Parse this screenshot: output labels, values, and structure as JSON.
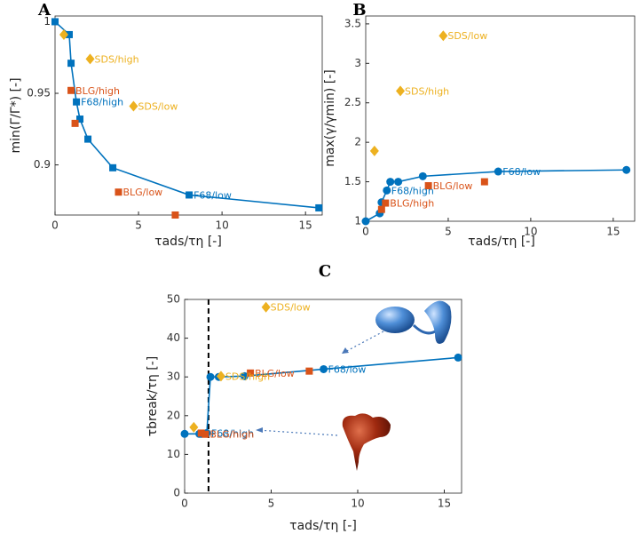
{
  "chart_data": [
    {
      "type": "scatter",
      "title": "A",
      "x_label": "τads/τη [-]",
      "y_label": "min(Γ/Γ*) [-]",
      "xlim": [
        0,
        16
      ],
      "ylim": [
        0.865,
        1.004
      ],
      "xticks": [
        0,
        5,
        10,
        15
      ],
      "yticks": [
        0.9,
        0.95,
        1
      ],
      "series": [
        {
          "color": "#0072bd",
          "marker": "square",
          "line": true,
          "x": [
            0,
            0.85,
            0.96,
            1.28,
            1.49,
            1.97,
            3.46,
            8.03,
            15.8
          ],
          "values": [
            1,
            0.991,
            0.971,
            0.944,
            0.932,
            0.918,
            0.898,
            0.879,
            0.87
          ],
          "point_labels": [
            null,
            null,
            null,
            "F68/high",
            null,
            null,
            null,
            "F68/low",
            null
          ]
        },
        {
          "color": "#d95319",
          "marker": "square",
          "line": false,
          "x": [
            0.96,
            1.2,
            3.8,
            7.2
          ],
          "values": [
            0.952,
            0.929,
            0.881,
            0.865
          ],
          "point_labels": [
            "BLG/high",
            null,
            "BLG/low",
            null
          ]
        },
        {
          "color": "#edb120",
          "marker": "diamond",
          "line": false,
          "x": [
            0.53,
            2.1,
            4.7
          ],
          "values": [
            0.991,
            0.974,
            0.941
          ],
          "point_labels": [
            null,
            "SDS/high",
            "SDS/low"
          ]
        }
      ]
    },
    {
      "type": "scatter",
      "title": "B",
      "x_label": "τads/τη [-]",
      "y_label": "max(γ/γmin) [-]",
      "xlim": [
        0,
        16.3
      ],
      "ylim": [
        1,
        3.6
      ],
      "xticks": [
        0,
        5,
        10,
        15
      ],
      "yticks": [
        1,
        1.5,
        2,
        2.5,
        3,
        3.5
      ],
      "series": [
        {
          "color": "#0072bd",
          "marker": "circle",
          "line": true,
          "x": [
            0,
            0.85,
            0.96,
            1.28,
            1.49,
            1.97,
            3.46,
            8.03,
            15.8
          ],
          "values": [
            1,
            1.1,
            1.24,
            1.39,
            1.5,
            1.5,
            1.57,
            1.63,
            1.65
          ],
          "point_labels": [
            null,
            null,
            null,
            "F68/high",
            null,
            null,
            null,
            "F68/low",
            null
          ]
        },
        {
          "color": "#d95319",
          "marker": "square",
          "line": false,
          "x": [
            0.96,
            1.2,
            3.8,
            7.2
          ],
          "values": [
            1.15,
            1.23,
            1.45,
            1.5
          ],
          "point_labels": [
            null,
            "BLG/high",
            "BLG/low",
            null
          ]
        },
        {
          "color": "#edb120",
          "marker": "diamond",
          "line": false,
          "x": [
            0.53,
            2.1,
            4.7
          ],
          "values": [
            1.89,
            2.65,
            3.35
          ],
          "point_labels": [
            null,
            "SDS/high",
            "SDS/low"
          ]
        }
      ]
    },
    {
      "type": "scatter",
      "title": "C",
      "x_label": "τads/τη [-]",
      "y_label": "τbreak/τη [-]",
      "xlim": [
        0,
        16
      ],
      "ylim": [
        0,
        50
      ],
      "xticks": [
        0,
        5,
        10,
        15
      ],
      "yticks": [
        0,
        10,
        20,
        30,
        40,
        50
      ],
      "vline": 1.38,
      "series": [
        {
          "color": "#0072bd",
          "marker": "circle",
          "line": true,
          "x": [
            0,
            0.85,
            0.96,
            1.28,
            1.49,
            1.97,
            3.46,
            8.03,
            15.8
          ],
          "values": [
            15.3,
            15.3,
            15.3,
            15.5,
            30,
            30,
            30.2,
            32,
            35
          ],
          "point_labels": [
            null,
            null,
            null,
            "F68/high",
            null,
            null,
            null,
            "F68/low",
            null
          ]
        },
        {
          "color": "#d95319",
          "marker": "square",
          "line": false,
          "x": [
            0.96,
            1.2,
            3.8,
            7.2
          ],
          "values": [
            15.5,
            15.2,
            31,
            31.5
          ],
          "point_labels": [
            null,
            "BLG/high",
            "BLG/low",
            null
          ]
        },
        {
          "color": "#edb120",
          "marker": "diamond",
          "line": false,
          "x": [
            0.53,
            2.1,
            4.7
          ],
          "values": [
            17,
            30.2,
            48
          ],
          "point_labels": [
            null,
            "SDS/high",
            "SDS/low"
          ]
        }
      ]
    }
  ]
}
